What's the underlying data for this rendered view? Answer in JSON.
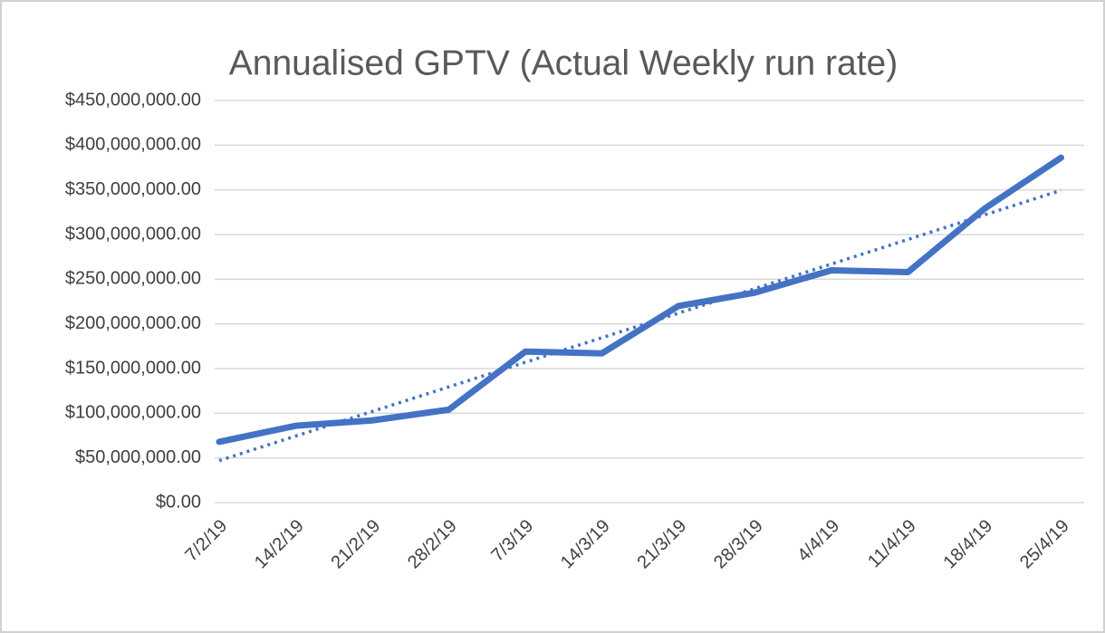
{
  "chart_data": {
    "type": "line",
    "title": "Annualised GPTV (Actual Weekly run rate)",
    "categories": [
      "7/2/19",
      "14/2/19",
      "21/2/19",
      "28/2/19",
      "7/3/19",
      "14/3/19",
      "21/3/19",
      "28/3/19",
      "4/4/19",
      "11/4/19",
      "18/4/19",
      "25/4/19"
    ],
    "series": [
      {
        "color": "#4472c4",
        "values": [
          68000000,
          86000000,
          92000000,
          104000000,
          169000000,
          167000000,
          220000000,
          235000000,
          260000000,
          258000000,
          329000000,
          386000000
        ]
      }
    ],
    "trendline": {
      "color": "#4472c4",
      "style": "dotted",
      "values": [
        47000000,
        74500000,
        102000000,
        129500000,
        157000000,
        184500000,
        212000000,
        239500000,
        267000000,
        294500000,
        322000000,
        349500000
      ]
    },
    "ylim": [
      0,
      450000000
    ],
    "yticks": [
      {
        "value": 0,
        "label": "$0.00"
      },
      {
        "value": 50000000,
        "label": "$50,000,000.00"
      },
      {
        "value": 100000000,
        "label": "$100,000,000.00"
      },
      {
        "value": 150000000,
        "label": "$150,000,000.00"
      },
      {
        "value": 200000000,
        "label": "$200,000,000.00"
      },
      {
        "value": 250000000,
        "label": "$250,000,000.00"
      },
      {
        "value": 300000000,
        "label": "$300,000,000.00"
      },
      {
        "value": 350000000,
        "label": "$350,000,000.00"
      },
      {
        "value": 400000000,
        "label": "$400,000,000.00"
      },
      {
        "value": 450000000,
        "label": "$450,000,000.00"
      }
    ],
    "grid": true
  }
}
